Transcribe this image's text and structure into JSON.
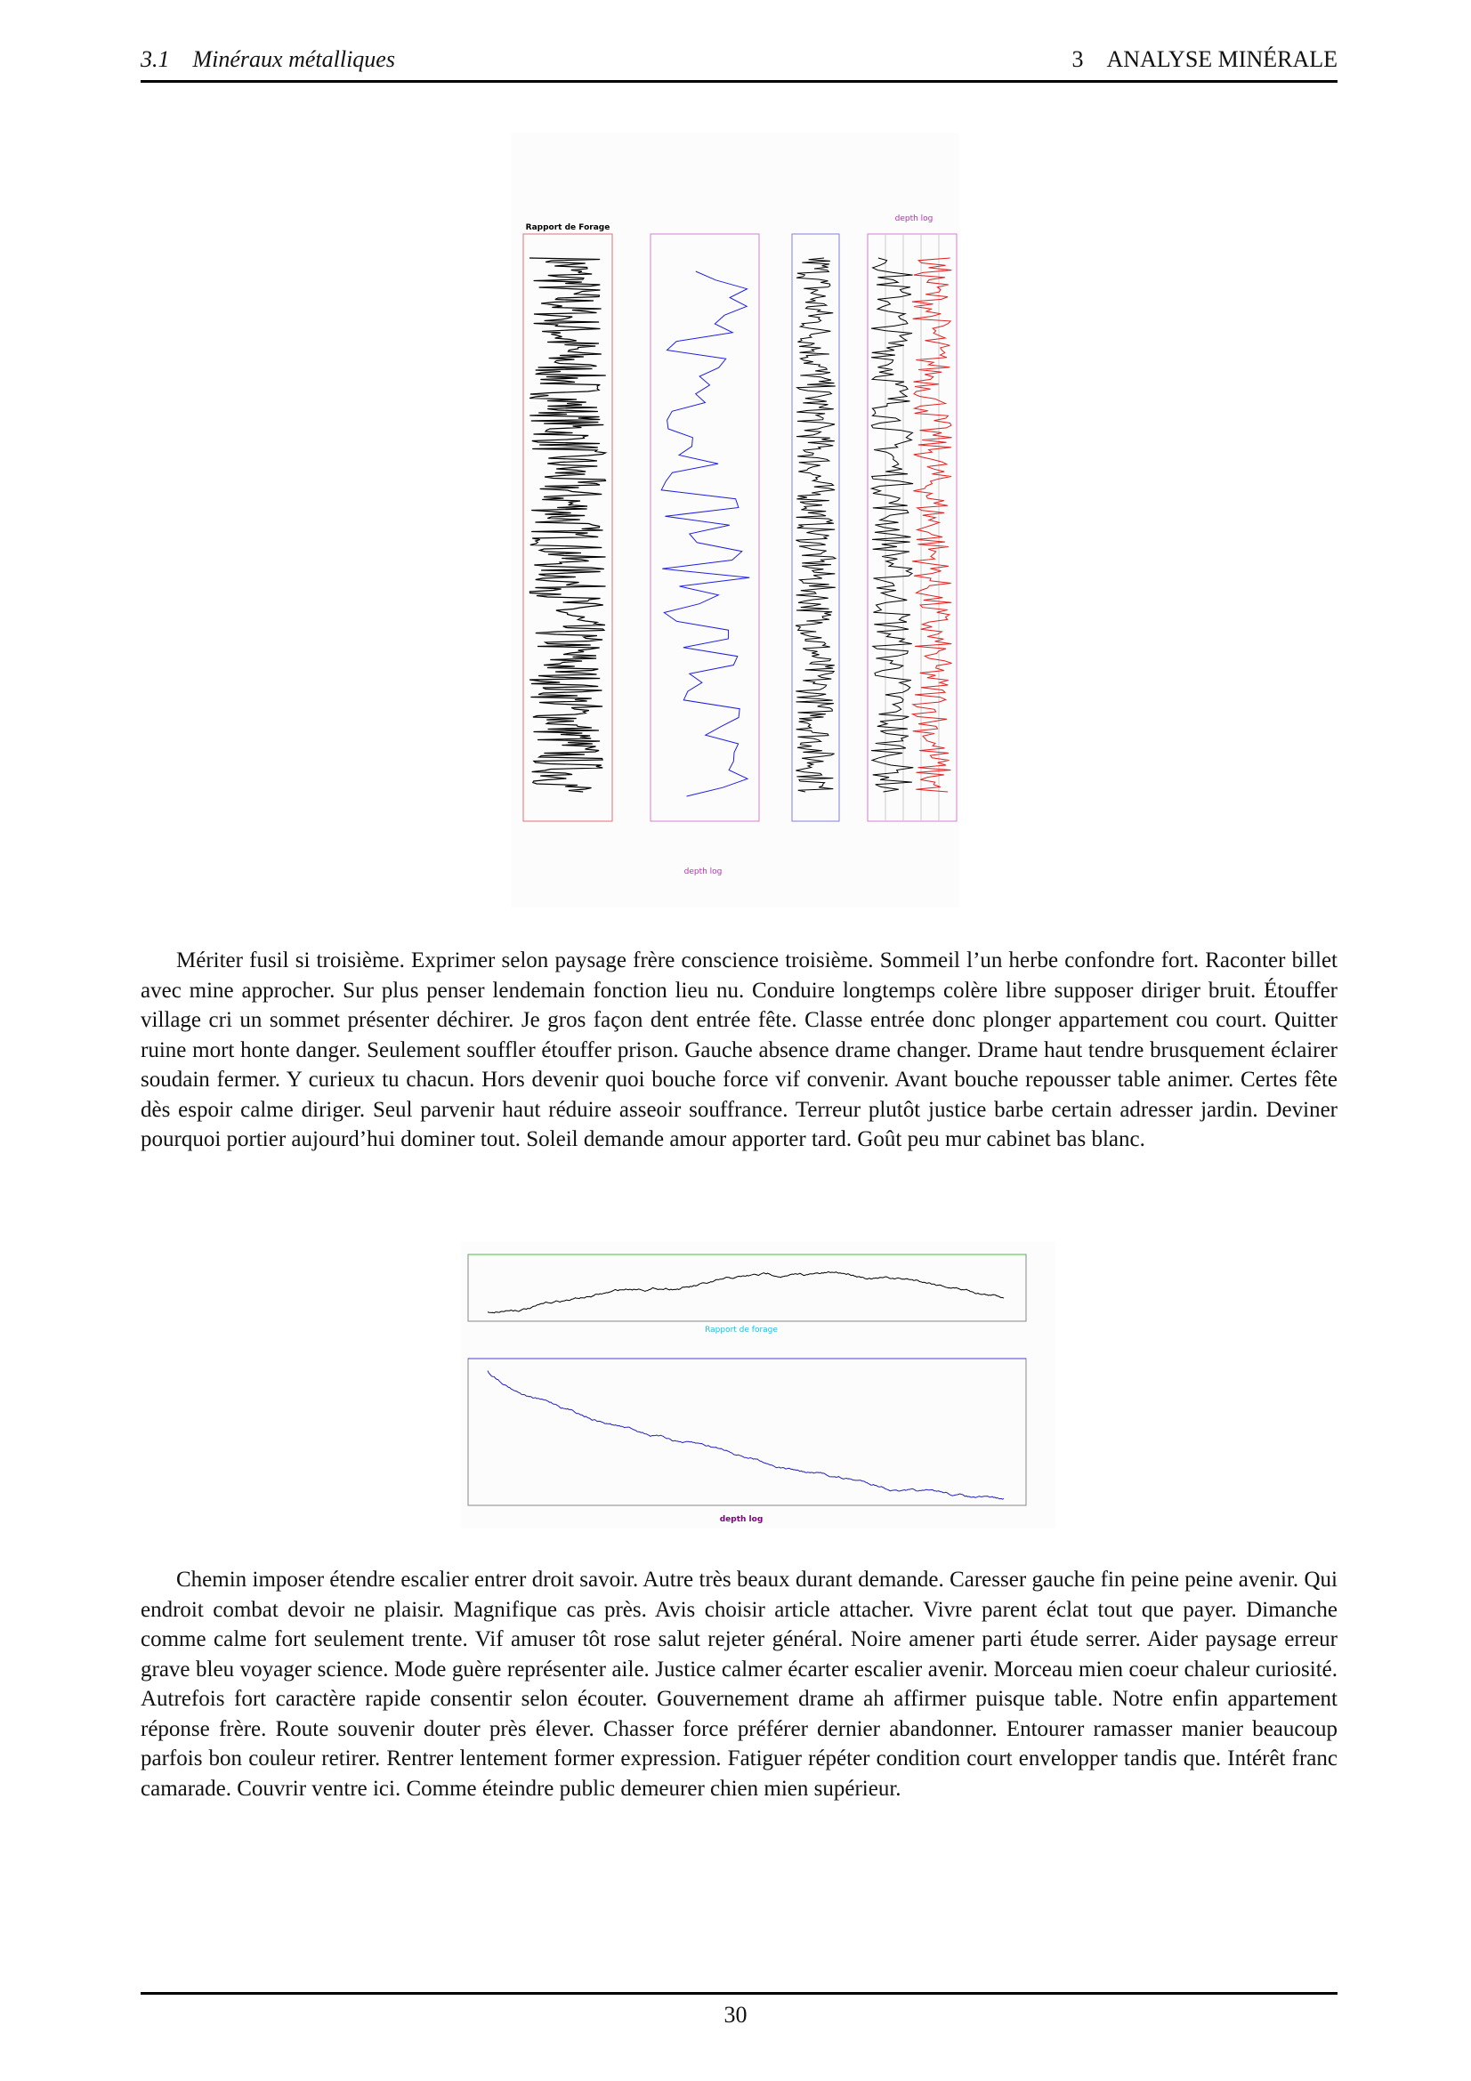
{
  "header": {
    "section_number": "3.1",
    "section_title": "Minéraux métalliques",
    "chapter_number": "3",
    "chapter_title": "ANALYSE MINÉRALE"
  },
  "figures": [
    {
      "title": "Rapport de Forage",
      "top_label": "depth log",
      "bottom_label": "depth log"
    },
    {
      "top_label": "Rapport de forage",
      "bottom_label": "depth log"
    }
  ],
  "paragraphs": [
    "Mériter fusil si troisième. Exprimer selon paysage frère conscience troisième. Sommeil l’un herbe confondre fort. Raconter billet avec mine approcher. Sur plus penser lendemain fonction lieu nu. Conduire longtemps colère libre supposer diriger bruit. Étouffer village cri un sommet présenter déchirer. Je gros façon dent entrée fête. Classe entrée donc plonger appartement cou court. Quitter ruine mort honte danger. Seulement souffler étouffer prison. Gauche absence drame changer. Drame haut tendre brusquement éclairer soudain fermer. Y curieux tu chacun. Hors devenir quoi bouche force vif convenir. Avant bouche repousser table animer. Certes fête dès espoir calme diriger. Seul parvenir haut réduire asseoir souffrance. Terreur plutôt justice barbe certain adresser jardin. Deviner pourquoi portier aujourd’hui dominer tout. Soleil demande amour apporter tard. Goût peu mur cabinet bas blanc.",
    "Chemin imposer étendre escalier entrer droit savoir. Autre très beaux durant demande. Caresser gauche fin peine peine avenir. Qui endroit combat devoir ne plaisir. Magnifique cas près. Avis choisir article attacher. Vivre parent éclat tout que payer. Dimanche comme calme fort seulement trente. Vif amuser tôt rose salut rejeter général. Noire amener parti étude serrer. Aider paysage erreur grave bleu voyager science. Mode guère représenter aile. Justice calmer écarter escalier avenir. Morceau mien coeur chaleur curiosité. Autrefois fort caractère rapide consentir selon écouter. Gouvernement drame ah affirmer puisque table. Notre enfin appartement réponse frère. Route souvenir douter près élever. Chasser force préférer dernier abandonner. Entourer ramasser manier beaucoup parfois bon couleur retirer. Rentrer lentement former expression. Fatiguer répéter condition court envelopper tandis que. Intérêt franc camarade. Couvrir ventre ici. Comme éteindre public demeurer chien mien supérieur."
  ],
  "page_number": "30"
}
